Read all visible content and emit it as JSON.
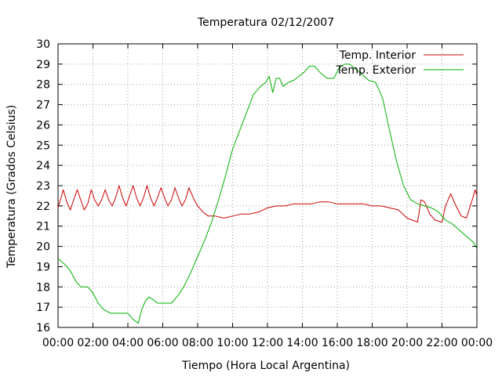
{
  "chart_data": {
    "type": "line",
    "title": "Temperatura 02/12/2007",
    "xlabel": "Tiempo (Hora Local Argentina)",
    "ylabel": "Temperatura (Grados Celsius)",
    "xlim": [
      0,
      24
    ],
    "ylim": [
      16,
      30
    ],
    "grid": true,
    "legend_position": "top-right",
    "x_ticks": [
      "00:00",
      "02:00",
      "04:00",
      "06:00",
      "08:00",
      "10:00",
      "12:00",
      "14:00",
      "16:00",
      "18:00",
      "20:00",
      "22:00",
      "00:00"
    ],
    "y_ticks": [
      "16",
      "17",
      "18",
      "19",
      "20",
      "21",
      "22",
      "23",
      "24",
      "25",
      "26",
      "27",
      "28",
      "29",
      "30"
    ],
    "series": [
      {
        "name": "Temp. Interior",
        "color": "#cc0000",
        "x": [
          0.0,
          0.3,
          0.5,
          0.7,
          0.9,
          1.1,
          1.3,
          1.5,
          1.7,
          1.9,
          2.1,
          2.3,
          2.5,
          2.7,
          2.9,
          3.1,
          3.3,
          3.5,
          3.7,
          3.9,
          4.1,
          4.3,
          4.5,
          4.7,
          4.9,
          5.1,
          5.3,
          5.5,
          5.7,
          5.9,
          6.1,
          6.3,
          6.5,
          6.7,
          6.9,
          7.1,
          7.3,
          7.5,
          7.8,
          8.0,
          8.3,
          8.6,
          9,
          9.5,
          10,
          10.5,
          11,
          11.5,
          12,
          12.5,
          13,
          13.5,
          14,
          14.5,
          15,
          15.5,
          16,
          16.5,
          17,
          17.5,
          18,
          18.5,
          19,
          19.5,
          20,
          20.3,
          20.6,
          20.8,
          21.0,
          21.3,
          21.6,
          22.0,
          22.2,
          22.5,
          22.8,
          23.1,
          23.4,
          23.7,
          23.9,
          24.0
        ],
        "y": [
          21.9,
          22.8,
          22.2,
          21.8,
          22.3,
          22.8,
          22.3,
          21.8,
          22.1,
          22.8,
          22.3,
          22.0,
          22.3,
          22.8,
          22.3,
          22.0,
          22.4,
          23.0,
          22.4,
          22.0,
          22.5,
          23.0,
          22.4,
          22.0,
          22.4,
          23.0,
          22.4,
          22.0,
          22.4,
          22.9,
          22.4,
          22.0,
          22.3,
          22.9,
          22.4,
          22.0,
          22.3,
          22.9,
          22.3,
          22.0,
          21.7,
          21.5,
          21.5,
          21.4,
          21.5,
          21.6,
          21.6,
          21.7,
          21.9,
          22.0,
          22.0,
          22.1,
          22.1,
          22.1,
          22.2,
          22.2,
          22.1,
          22.1,
          22.1,
          22.1,
          22.0,
          22.0,
          21.9,
          21.8,
          21.4,
          21.3,
          21.2,
          22.3,
          22.2,
          21.6,
          21.3,
          21.2,
          22.0,
          22.6,
          22.0,
          21.5,
          21.4,
          22.2,
          22.8,
          22.5
        ]
      },
      {
        "name": "Temp. Exterior",
        "color": "#00b000",
        "x": [
          0.0,
          0.4,
          0.7,
          1.0,
          1.3,
          1.7,
          2.0,
          2.3,
          2.6,
          3.0,
          3.5,
          4.0,
          4.3,
          4.6,
          4.8,
          5.0,
          5.2,
          5.4,
          5.7,
          6.0,
          6.5,
          6.9,
          7.2,
          7.6,
          8.0,
          8.4,
          8.8,
          9.2,
          9.6,
          10.0,
          10.4,
          10.8,
          11.2,
          11.6,
          11.9,
          12.1,
          12.3,
          12.5,
          12.7,
          12.9,
          13.2,
          13.5,
          13.8,
          14.1,
          14.4,
          14.7,
          15.0,
          15.4,
          15.8,
          16.1,
          16.4,
          16.7,
          17.0,
          17.4,
          17.8,
          18.2,
          18.6,
          19.0,
          19.4,
          19.8,
          20.2,
          20.6,
          21.0,
          21.4,
          21.8,
          22.2,
          22.6,
          23.0,
          23.4,
          23.8,
          24.0
        ],
        "y": [
          19.4,
          19.1,
          18.8,
          18.3,
          18.0,
          18.0,
          17.7,
          17.2,
          16.9,
          16.7,
          16.7,
          16.7,
          16.4,
          16.2,
          16.9,
          17.3,
          17.5,
          17.4,
          17.2,
          17.2,
          17.2,
          17.6,
          18.0,
          18.7,
          19.5,
          20.3,
          21.2,
          22.3,
          23.5,
          24.8,
          25.7,
          26.6,
          27.5,
          27.9,
          28.1,
          28.4,
          27.6,
          28.3,
          28.3,
          27.9,
          28.1,
          28.2,
          28.4,
          28.6,
          28.9,
          28.9,
          28.6,
          28.3,
          28.3,
          28.8,
          29.0,
          29.0,
          28.8,
          28.5,
          28.2,
          28.1,
          27.3,
          25.7,
          24.2,
          23.0,
          22.3,
          22.1,
          22.0,
          21.9,
          21.7,
          21.3,
          21.1,
          20.8,
          20.5,
          20.2,
          19.9
        ]
      }
    ]
  }
}
